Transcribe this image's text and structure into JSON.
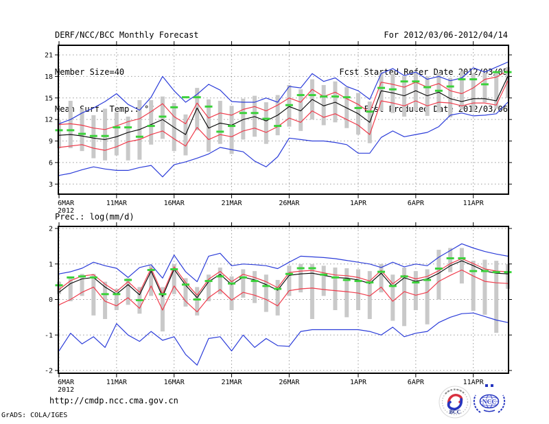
{
  "header": {
    "left_lines": [
      "DERF/NCC/BCC Monthly Forecast",
      "Member Size=40",
      "Mean Surf. Temp.: °C"
    ],
    "right_lines": [
      "For 2012/03/06-2012/04/14",
      "Fcst Started Refer Date 2012/03/05",
      "Fcst Produced Date 2012/03/06"
    ]
  },
  "footer": {
    "url": "http://cmdp.ncc.cma.gov.cn",
    "credit": "GrADS: COLA/IGES"
  },
  "logos": {
    "bcc": "BCC",
    "ncc": "NCC"
  },
  "colors": {
    "ensemble_envelope": "#2b3cd9",
    "quartile_band": "#ef3b4b",
    "ensemble_mean": "#000000",
    "green_dashes": "#3ad13a",
    "spread_bars": "#c9c9c9",
    "grid": "#999999"
  },
  "chart_data": [
    {
      "id": "surface-temperature",
      "type": "line",
      "title": "Mean Surf. Temp.: °C",
      "xlabel": "",
      "ylabel": "°C",
      "ylim": [
        3,
        21
      ],
      "yticks": [
        3,
        6,
        9,
        12,
        15,
        18,
        21
      ],
      "n_days": 40,
      "x_start_date": "6MAR",
      "x_sub_label": "2012",
      "x_ticks": [
        {
          "day": 0,
          "label": "6MAR"
        },
        {
          "day": 5,
          "label": "11MAR"
        },
        {
          "day": 10,
          "label": "16MAR"
        },
        {
          "day": 15,
          "label": "21MAR"
        },
        {
          "day": 20,
          "label": "26MAR"
        },
        {
          "day": 26,
          "label": "1APR"
        },
        {
          "day": 31,
          "label": "6APR"
        },
        {
          "day": 36,
          "label": "11APR"
        }
      ],
      "grid": true,
      "legend": "none",
      "series": [
        {
          "name": "ensemble-max-blue",
          "color": "#2b3cd9",
          "width": 1.2,
          "values": [
            11.4,
            12.0,
            12.9,
            13.6,
            14.5,
            15.6,
            14.1,
            13.3,
            15.1,
            18.0,
            16.0,
            14.4,
            15.5,
            16.9,
            16.1,
            14.5,
            14.4,
            14.4,
            15.0,
            14.4,
            16.6,
            16.4,
            18.4,
            17.3,
            17.8,
            16.6,
            16.0,
            14.8,
            18.4,
            19.1,
            18.1,
            18.6,
            17.6,
            18.0,
            17.4,
            17.8,
            19.2,
            18.6,
            19.3,
            20.0
          ]
        },
        {
          "name": "upper-quartile-red",
          "color": "#ef3b4b",
          "width": 1.2,
          "values": [
            11.3,
            11.4,
            11.2,
            10.8,
            10.6,
            11.1,
            11.7,
            12.1,
            13.1,
            14.2,
            12.4,
            11.4,
            14.3,
            12.2,
            12.9,
            12.6,
            13.4,
            13.8,
            13.2,
            14.0,
            15.0,
            14.4,
            16.2,
            15.2,
            15.8,
            14.9,
            14.1,
            13.0,
            17.2,
            16.9,
            16.5,
            17.2,
            16.5,
            17.0,
            16.0,
            15.6,
            16.4,
            17.6,
            17.9,
            18.8
          ]
        },
        {
          "name": "ensemble-mean-black",
          "color": "#000000",
          "width": 1.1,
          "values": [
            9.8,
            9.9,
            9.7,
            9.4,
            9.2,
            9.6,
            10.2,
            10.6,
            11.3,
            12.0,
            10.9,
            9.9,
            13.6,
            10.8,
            11.5,
            11.2,
            12.0,
            12.4,
            11.8,
            12.6,
            13.8,
            13.2,
            14.8,
            13.9,
            14.4,
            13.6,
            12.8,
            11.6,
            16.0,
            15.7,
            15.3,
            16.0,
            15.3,
            15.8,
            14.9,
            14.5,
            14.9,
            14.9,
            14.6,
            18.0
          ]
        },
        {
          "name": "lower-quartile-red",
          "color": "#ef3b4b",
          "width": 1.2,
          "values": [
            8.1,
            8.3,
            8.5,
            8.0,
            7.7,
            8.2,
            8.9,
            9.2,
            9.9,
            10.4,
            9.3,
            8.3,
            10.9,
            9.2,
            9.9,
            9.6,
            10.4,
            10.8,
            10.2,
            11.0,
            12.2,
            11.6,
            13.2,
            12.3,
            12.8,
            12.0,
            11.2,
            9.9,
            14.6,
            14.3,
            13.9,
            14.6,
            13.9,
            14.4,
            14.3,
            13.9,
            14.3,
            14.3,
            14.0,
            17.4
          ]
        },
        {
          "name": "ensemble-min-blue",
          "color": "#2b3cd9",
          "width": 1.2,
          "values": [
            4.2,
            4.5,
            5.0,
            5.4,
            5.1,
            4.9,
            4.9,
            5.3,
            5.6,
            4.0,
            5.7,
            6.1,
            6.6,
            7.2,
            8.1,
            7.8,
            7.5,
            6.2,
            5.4,
            6.8,
            9.4,
            9.2,
            9.0,
            9.0,
            8.8,
            8.5,
            7.3,
            7.3,
            9.5,
            10.4,
            9.6,
            9.9,
            10.2,
            11.0,
            12.6,
            12.9,
            12.5,
            12.6,
            12.8,
            14.4
          ]
        }
      ],
      "obs_dashes": {
        "name": "green-dash-series",
        "color": "#3ad13a",
        "values": [
          10.5,
          10.5,
          10.0,
          9.7,
          9.7,
          10.9,
          10.9,
          9.6,
          11.1,
          12.4,
          13.7,
          15.1,
          15.1,
          13.8,
          10.3,
          11.1,
          12.9,
          12.9,
          12.1,
          11.1,
          14.0,
          15.4,
          15.4,
          15.2,
          15.2,
          15.1,
          13.6,
          13.1,
          16.4,
          16.2,
          17.3,
          17.3,
          16.5,
          16.0,
          16.6,
          17.6,
          17.6,
          16.9,
          18.6,
          18.6
        ]
      },
      "spread_bars": {
        "name": "member-spread-bars",
        "color": "#c9c9c9",
        "low": [
          8.0,
          8.0,
          7.6,
          6.6,
          6.3,
          7.0,
          6.3,
          6.4,
          8.5,
          9.3,
          7.6,
          7.0,
          10.5,
          7.5,
          8.6,
          7.2,
          9.2,
          9.6,
          8.6,
          9.8,
          11.0,
          10.4,
          12.0,
          11.2,
          11.6,
          10.8,
          9.9,
          8.7,
          13.2,
          12.9,
          12.4,
          13.2,
          12.5,
          13.0,
          12.3,
          13.4,
          13.1,
          14.4,
          13.5,
          15.0
        ],
        "high": [
          11.9,
          14.6,
          13.5,
          12.6,
          13.5,
          13.0,
          12.4,
          14.7,
          14.7,
          15.2,
          14.3,
          12.7,
          16.4,
          14.8,
          14.6,
          13.9,
          14.9,
          15.3,
          14.4,
          15.4,
          16.8,
          16.2,
          17.6,
          16.8,
          17.3,
          16.5,
          15.7,
          14.5,
          18.6,
          18.4,
          18.0,
          18.7,
          18.0,
          18.5,
          17.8,
          18.7,
          18.4,
          18.5,
          18.6,
          19.3
        ]
      }
    },
    {
      "id": "precipitation",
      "type": "line",
      "title": "Prec.: log(mm/d)",
      "xlabel": "",
      "ylabel": "log(mm/d)",
      "ylim": [
        -2,
        2
      ],
      "yticks": [
        -2,
        -1,
        0,
        1,
        2
      ],
      "n_days": 40,
      "x_start_date": "6MAR",
      "x_sub_label": "2012",
      "x_ticks": [
        {
          "day": 0,
          "label": "6MAR"
        },
        {
          "day": 5,
          "label": "11MAR"
        },
        {
          "day": 10,
          "label": "16MAR"
        },
        {
          "day": 15,
          "label": "21MAR"
        },
        {
          "day": 20,
          "label": "26MAR"
        },
        {
          "day": 26,
          "label": "1APR"
        },
        {
          "day": 31,
          "label": "6APR"
        },
        {
          "day": 36,
          "label": "11APR"
        }
      ],
      "grid": true,
      "legend": "none",
      "series": [
        {
          "name": "ensemble-max-blue",
          "color": "#2b3cd9",
          "width": 1.2,
          "values": [
            0.72,
            0.78,
            0.88,
            1.05,
            0.95,
            0.88,
            0.62,
            0.9,
            0.98,
            0.6,
            1.25,
            0.78,
            0.5,
            1.22,
            1.3,
            0.95,
            1.0,
            0.98,
            0.95,
            0.87,
            1.05,
            1.22,
            1.2,
            1.18,
            1.15,
            1.1,
            1.05,
            1.0,
            0.9,
            1.05,
            0.92,
            1.0,
            0.95,
            1.19,
            1.38,
            1.57,
            1.45,
            1.35,
            1.28,
            1.22
          ]
        },
        {
          "name": "upper-quartile-red",
          "color": "#ef3b4b",
          "width": 1.2,
          "values": [
            0.28,
            0.53,
            0.66,
            0.7,
            0.43,
            0.22,
            0.5,
            0.2,
            0.88,
            0.15,
            0.92,
            0.48,
            0.12,
            0.57,
            0.79,
            0.5,
            0.71,
            0.62,
            0.5,
            0.33,
            0.76,
            0.8,
            0.82,
            0.75,
            0.69,
            0.67,
            0.62,
            0.52,
            0.82,
            0.44,
            0.68,
            0.58,
            0.65,
            0.81,
            1.01,
            1.15,
            1.01,
            0.86,
            0.8,
            0.78
          ]
        },
        {
          "name": "ensemble-mean-black",
          "color": "#000000",
          "width": 1.1,
          "values": [
            0.2,
            0.45,
            0.58,
            0.62,
            0.35,
            0.15,
            0.42,
            0.13,
            0.8,
            0.08,
            0.85,
            0.4,
            0.05,
            0.5,
            0.71,
            0.42,
            0.63,
            0.55,
            0.42,
            0.26,
            0.68,
            0.72,
            0.74,
            0.68,
            0.62,
            0.6,
            0.55,
            0.45,
            0.74,
            0.36,
            0.61,
            0.51,
            0.58,
            0.74,
            0.95,
            1.09,
            0.95,
            0.8,
            0.74,
            0.72
          ]
        },
        {
          "name": "lower-quartile-red",
          "color": "#ef3b4b",
          "width": 1.2,
          "values": [
            -0.15,
            0.0,
            0.2,
            0.35,
            -0.05,
            -0.18,
            0.05,
            -0.25,
            0.38,
            -0.3,
            0.38,
            -0.05,
            -0.35,
            0.05,
            0.28,
            -0.02,
            0.2,
            0.12,
            0.0,
            -0.18,
            0.25,
            0.3,
            0.32,
            0.28,
            0.25,
            0.22,
            0.18,
            0.1,
            0.35,
            -0.05,
            0.22,
            0.12,
            0.2,
            0.51,
            0.68,
            0.83,
            0.66,
            0.51,
            0.47,
            0.45
          ]
        },
        {
          "name": "ensemble-min-blue",
          "color": "#2b3cd9",
          "width": 1.2,
          "values": [
            -1.45,
            -0.95,
            -1.25,
            -1.05,
            -1.35,
            -0.68,
            -1.0,
            -1.18,
            -0.9,
            -1.15,
            -1.05,
            -1.55,
            -1.85,
            -1.1,
            -1.05,
            -1.45,
            -1.0,
            -1.35,
            -1.1,
            -1.3,
            -1.32,
            -0.9,
            -0.85,
            -0.85,
            -0.85,
            -0.85,
            -0.85,
            -0.9,
            -1.0,
            -0.78,
            -1.05,
            -0.95,
            -0.9,
            -0.65,
            -0.5,
            -0.4,
            -0.38,
            -0.48,
            -0.58,
            -0.65
          ]
        }
      ],
      "obs_dashes": {
        "name": "green-dash-series",
        "color": "#3ad13a",
        "values": [
          0.4,
          0.62,
          0.65,
          0.62,
          0.15,
          0.15,
          0.55,
          -0.02,
          0.83,
          0.15,
          0.85,
          0.42,
          0.0,
          0.52,
          0.65,
          0.45,
          0.62,
          0.52,
          0.38,
          0.3,
          0.72,
          0.88,
          0.88,
          0.7,
          0.62,
          0.55,
          0.52,
          0.48,
          0.78,
          0.38,
          0.65,
          0.48,
          0.55,
          0.87,
          1.16,
          1.16,
          0.8,
          0.8,
          0.77,
          0.77
        ]
      },
      "spread_bars": {
        "name": "member-spread-bars",
        "color": "#c9c9c9",
        "low": [
          0.15,
          -0.05,
          0.1,
          -0.45,
          -0.55,
          -0.3,
          -0.15,
          -0.4,
          0.1,
          -0.9,
          0.15,
          -0.2,
          -0.45,
          -0.05,
          0.15,
          -0.3,
          0.05,
          -0.1,
          -0.35,
          -0.45,
          0.1,
          0.2,
          -0.55,
          0.1,
          -0.3,
          -0.5,
          -0.3,
          -0.55,
          0.2,
          -0.6,
          -0.75,
          -0.3,
          -0.7,
          0.0,
          0.77,
          0.45,
          -0.32,
          -0.43,
          -0.94,
          0.3
        ],
        "high": [
          0.5,
          0.62,
          0.72,
          0.72,
          0.5,
          0.3,
          0.6,
          0.35,
          0.95,
          0.35,
          1.0,
          0.6,
          0.35,
          0.7,
          0.9,
          0.65,
          0.85,
          0.8,
          0.7,
          0.55,
          0.95,
          1.0,
          1.0,
          0.95,
          0.9,
          0.88,
          0.85,
          0.8,
          1.0,
          0.7,
          0.9,
          0.8,
          0.85,
          1.4,
          1.45,
          1.45,
          1.09,
          1.12,
          1.09,
          1.0
        ]
      }
    }
  ]
}
